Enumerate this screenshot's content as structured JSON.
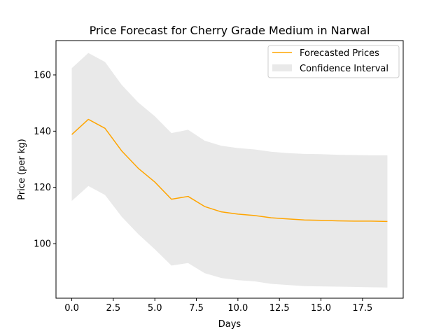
{
  "chart_data": {
    "type": "line",
    "title": "Price Forecast for Cherry Grade Medium in Narwal",
    "xlabel": "Days",
    "ylabel": "Price (per kg)",
    "xlim": [
      -0.95,
      19.95
    ],
    "ylim": [
      80.6,
      172.2
    ],
    "xticks": [
      0.0,
      2.5,
      5.0,
      7.5,
      10.0,
      12.5,
      15.0,
      17.5
    ],
    "xtick_labels": [
      "0.0",
      "2.5",
      "5.0",
      "7.5",
      "10.0",
      "12.5",
      "15.0",
      "17.5"
    ],
    "yticks": [
      100,
      120,
      140,
      160
    ],
    "ytick_labels": [
      "100",
      "120",
      "140",
      "160"
    ],
    "grid": false,
    "legend_position": "top-right",
    "x": [
      0,
      1,
      2,
      3,
      4,
      5,
      6,
      7,
      8,
      9,
      10,
      11,
      12,
      13,
      14,
      15,
      16,
      17,
      18,
      19
    ],
    "series": [
      {
        "name": "Forecasted Prices",
        "color": "#ffa500",
        "values": [
          138.8,
          144.2,
          141.0,
          133.0,
          126.8,
          121.9,
          115.8,
          116.8,
          113.2,
          111.3,
          110.5,
          110.0,
          109.2,
          108.8,
          108.4,
          108.3,
          108.1,
          108.0,
          108.0,
          107.9
        ]
      }
    ],
    "confidence_interval": {
      "name": "Confidence Interval",
      "color": "#d3d3d3",
      "lower": [
        115.2,
        120.5,
        117.3,
        109.6,
        103.4,
        98.0,
        92.2,
        93.1,
        89.5,
        87.8,
        87.0,
        86.6,
        85.7,
        85.3,
        84.9,
        84.8,
        84.7,
        84.6,
        84.5,
        84.4
      ],
      "upper": [
        162.4,
        167.8,
        164.6,
        156.5,
        150.2,
        145.3,
        139.3,
        140.5,
        136.6,
        134.8,
        134.0,
        133.5,
        132.7,
        132.2,
        131.9,
        131.8,
        131.6,
        131.5,
        131.4,
        131.4
      ]
    }
  }
}
